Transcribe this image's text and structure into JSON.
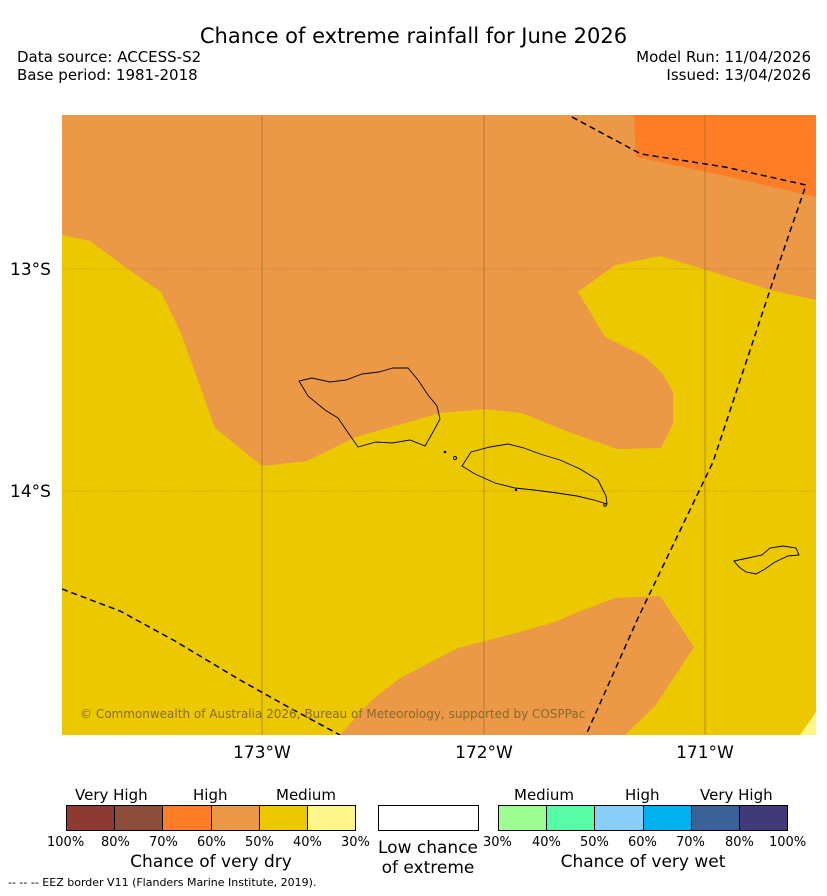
{
  "header": {
    "title": "Chance of extreme rainfall for June 2026",
    "data_source": "Data source: ACCESS-S2",
    "base_period": "Base period: 1981-2018",
    "model_run": "Model Run: 11/04/2026",
    "issued": "Issued: 13/04/2026"
  },
  "map": {
    "lat_labels": [
      "13°S",
      "14°S"
    ],
    "lon_labels": [
      "173°W",
      "172°W",
      "171°W"
    ],
    "copyright": "© Commonwealth of Australia 2026, Bureau of Meteorology, supported by COSPPac",
    "colors": {
      "medium": "#ecc800",
      "high": "#eb9947",
      "high_strong": "#fd7e26"
    }
  },
  "legend": {
    "dry": {
      "headings": [
        "Very High",
        "High",
        "Medium"
      ],
      "colors": [
        "#8c3a32",
        "#8c4d3b",
        "#fd7e26",
        "#eb9947",
        "#ecc800",
        "#fef688"
      ],
      "ticks": [
        "100%",
        "80%",
        "70%",
        "60%",
        "50%",
        "40%",
        "30%"
      ],
      "caption": "Chance of very dry"
    },
    "low": {
      "caption_line1": "Low chance",
      "caption_line2": "of extreme",
      "color": "#ffffff"
    },
    "wet": {
      "headings": [
        "Medium",
        "High",
        "Very High"
      ],
      "colors": [
        "#9dff91",
        "#59fca6",
        "#89cdf9",
        "#01b1ed",
        "#3a6198",
        "#403a78"
      ],
      "ticks": [
        "30%",
        "40%",
        "50%",
        "60%",
        "70%",
        "80%",
        "100%"
      ],
      "caption": "Chance of very wet"
    }
  },
  "footnote": "--  --  -- EEZ border V11 (Flanders Marine Institute, 2019)."
}
